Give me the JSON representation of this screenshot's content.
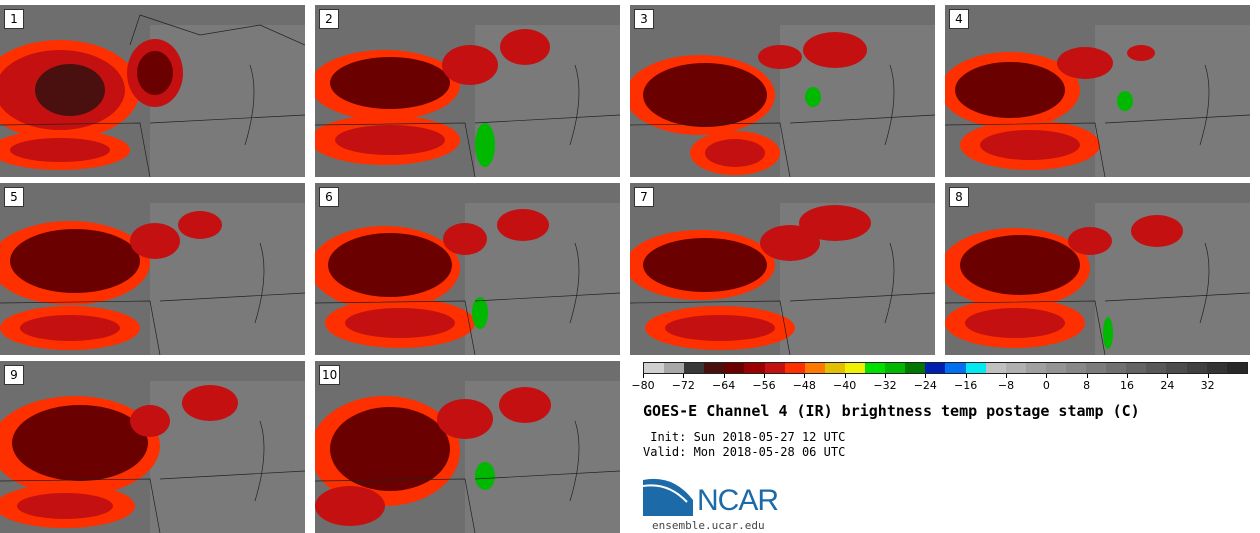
{
  "panels": [
    {
      "label": "1"
    },
    {
      "label": "2"
    },
    {
      "label": "3"
    },
    {
      "label": "4"
    },
    {
      "label": "5"
    },
    {
      "label": "6"
    },
    {
      "label": "7"
    },
    {
      "label": "8"
    },
    {
      "label": "9"
    },
    {
      "label": "10"
    }
  ],
  "colorbar": {
    "colors": [
      "#d0d0d0",
      "#a8a8a8",
      "#383838",
      "#4a1010",
      "#6b0000",
      "#9b0000",
      "#c41010",
      "#ff3000",
      "#ff7800",
      "#e0c000",
      "#f0f000",
      "#00e000",
      "#00b800",
      "#007800",
      "#0020b0",
      "#0070f0",
      "#00e8f0",
      "#c0c0c0",
      "#b0b0b0",
      "#a0a0a0",
      "#949494",
      "#888888",
      "#7c7c7c",
      "#707070",
      "#646464",
      "#585858",
      "#4c4c4c",
      "#404040",
      "#343434",
      "#282828"
    ],
    "min": -80,
    "max": 40,
    "ticks": [
      "−80",
      "−72",
      "−64",
      "−56",
      "−48",
      "−40",
      "−32",
      "−24",
      "−16",
      "−8",
      "0",
      "8",
      "16",
      "24",
      "32"
    ],
    "tick_values": [
      -80,
      -72,
      -64,
      -56,
      -48,
      -40,
      -32,
      -24,
      -16,
      -8,
      0,
      8,
      16,
      24,
      32
    ]
  },
  "title": "GOES-E Channel 4 (IR) brightness temp postage stamp (C)",
  "init_text": " Init: Sun 2018-05-27 12 UTC",
  "valid_text": "Valid: Mon 2018-05-28 06 UTC",
  "logo": {
    "text": "NCAR",
    "color": "#1d6aa8"
  },
  "site": "ensemble.ucar.edu"
}
